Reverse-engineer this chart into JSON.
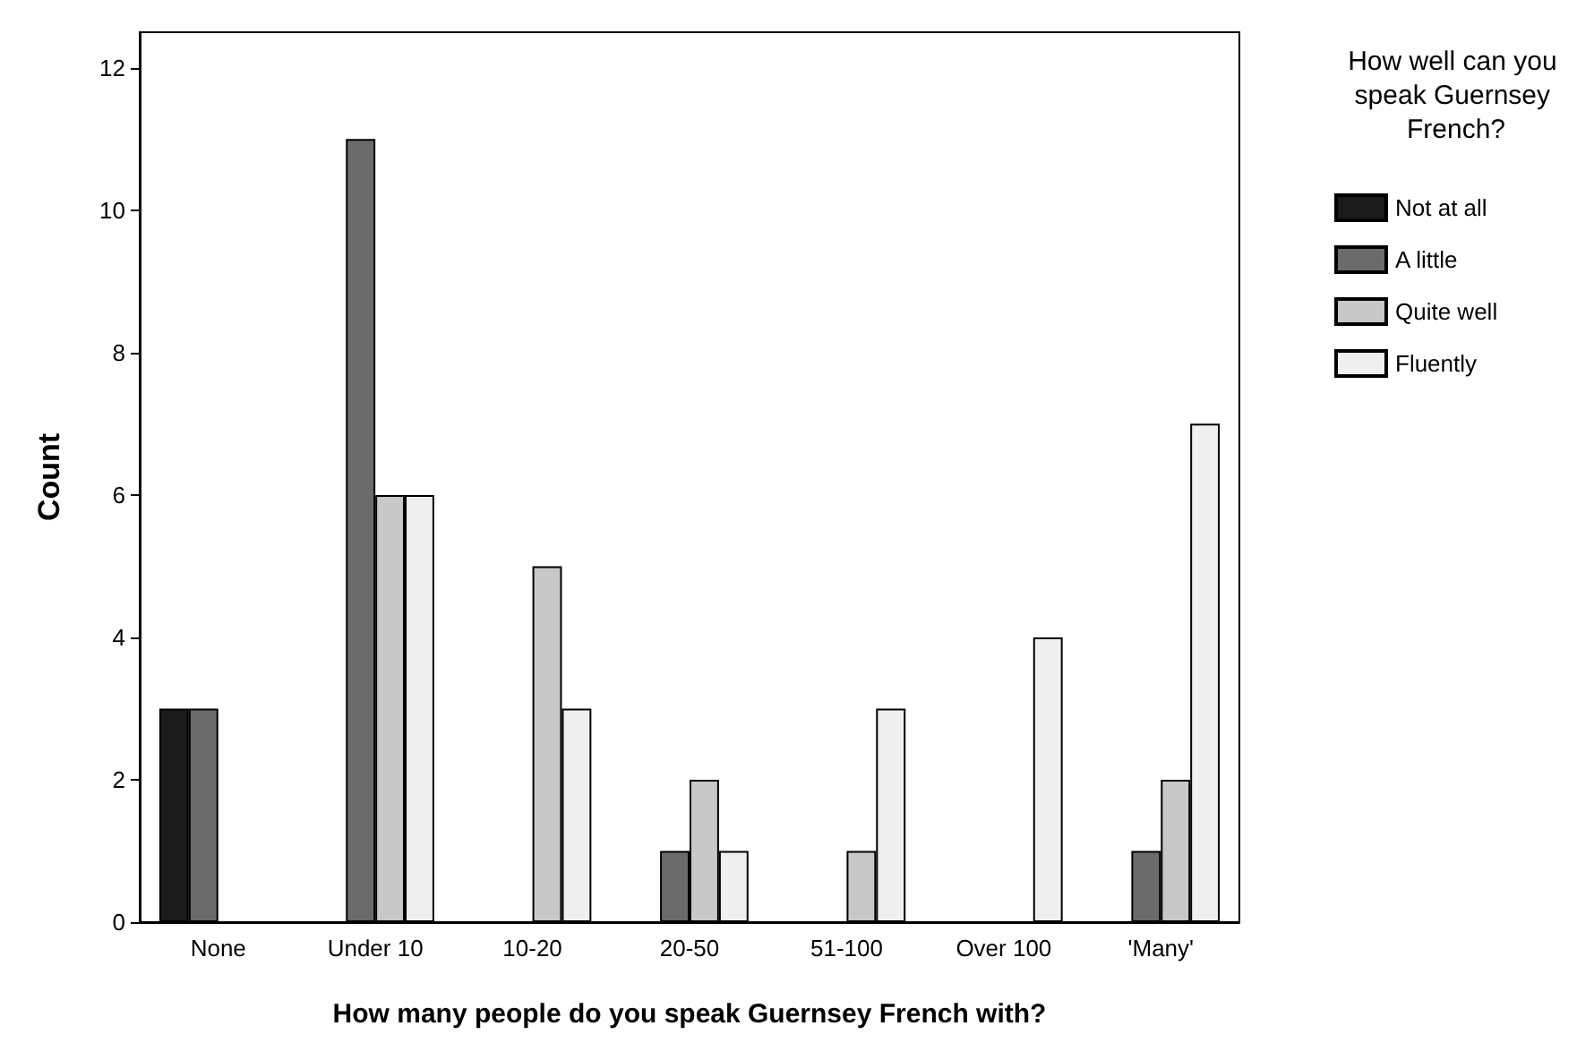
{
  "chart_data": {
    "type": "bar",
    "xlabel": "How many people do you speak Guernsey French with?",
    "ylabel": "Count",
    "legend_title": "How well can you speak Guernsey French?",
    "categories": [
      "None",
      "Under 10",
      "10-20",
      "20-50",
      "51-100",
      "Over 100",
      "'Many'"
    ],
    "series": [
      {
        "name": "Not at all",
        "color": "#1a1a1a",
        "values": [
          3,
          0,
          0,
          0,
          0,
          0,
          0
        ]
      },
      {
        "name": "A little",
        "color": "#6b6b6b",
        "values": [
          3,
          11,
          0,
          1,
          0,
          0,
          1
        ]
      },
      {
        "name": "Quite well",
        "color": "#c8c8c8",
        "values": [
          0,
          6,
          5,
          2,
          1,
          0,
          2
        ]
      },
      {
        "name": "Fluently",
        "color": "#efefef",
        "values": [
          0,
          6,
          3,
          1,
          3,
          4,
          7
        ]
      }
    ],
    "ylim": [
      0,
      12.5
    ],
    "yticks": [
      0,
      2,
      4,
      6,
      8,
      10,
      12
    ],
    "grid": false,
    "legend": "top right"
  }
}
